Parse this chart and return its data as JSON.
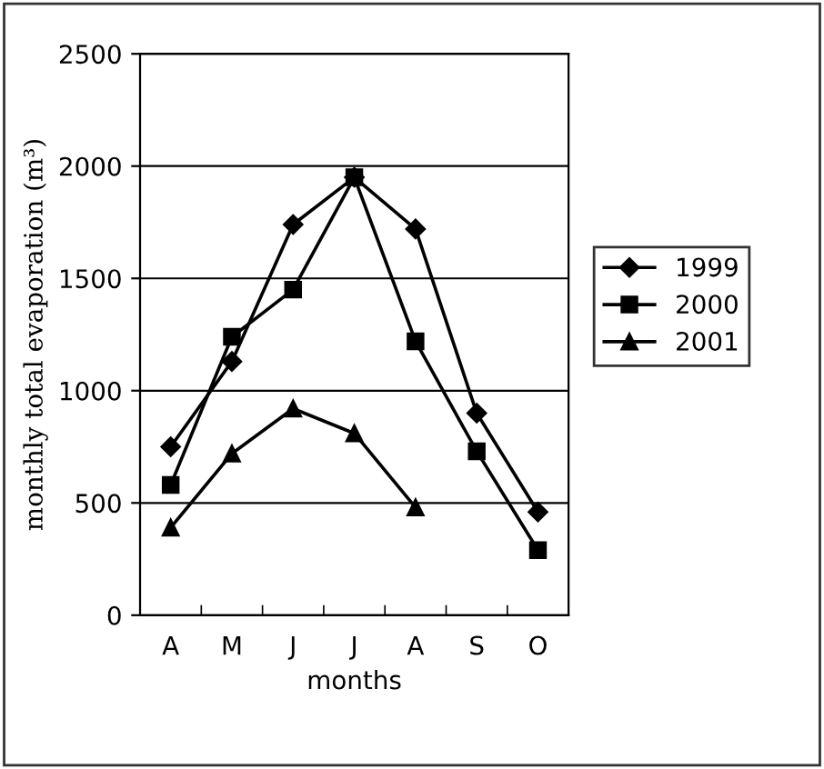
{
  "chart_data": {
    "type": "line",
    "xlabel": "months",
    "ylabel": "monthly total evaporation (m³)",
    "categories": [
      "A",
      "M",
      "J",
      "J",
      "A",
      "S",
      "O"
    ],
    "series": [
      {
        "name": "1999",
        "color": "#000000",
        "marker": "diamond",
        "values": [
          750,
          1130,
          1740,
          1950,
          1720,
          900,
          460
        ]
      },
      {
        "name": "2000",
        "color": "#000000",
        "marker": "square",
        "values": [
          580,
          1240,
          1450,
          1950,
          1220,
          730,
          290
        ]
      },
      {
        "name": "2001",
        "color": "#000000",
        "marker": "triangle",
        "values": [
          390,
          720,
          920,
          810,
          480,
          null,
          null
        ]
      }
    ],
    "ylim": [
      0,
      2500
    ],
    "yticks": [
      0,
      500,
      1000,
      1500,
      2000,
      2500
    ],
    "grid": "y",
    "legend": "right",
    "line_style": "solid"
  }
}
